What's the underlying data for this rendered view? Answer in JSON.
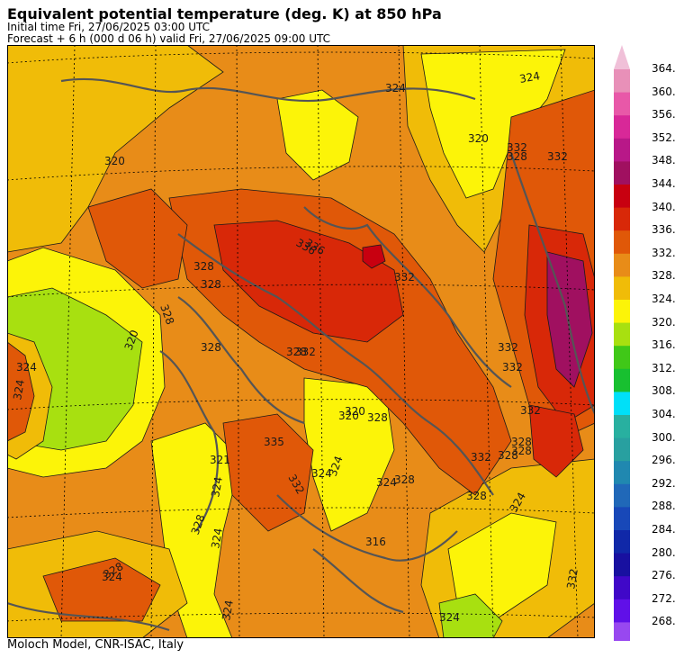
{
  "header": {
    "title": "Equivalent potential temperature (deg. K) at 850 hPa",
    "initial_time": "Initial time  Fri, 27/06/2025  03:00 UTC",
    "forecast": "Forecast  +   6 h  (000 d 06 h)  valid Fri, 27/06/2025 09:00 UTC"
  },
  "footer": {
    "credit": "Moloch Model, CNR-ISAC, Italy"
  },
  "colorbar": {
    "labels": [
      "364.",
      "360.",
      "356.",
      "352.",
      "348.",
      "344.",
      "340.",
      "336.",
      "332.",
      "328.",
      "324.",
      "320.",
      "316.",
      "312.",
      "308.",
      "304.",
      "300.",
      "296.",
      "292.",
      "288.",
      "284.",
      "280.",
      "276.",
      "272.",
      "268."
    ],
    "colors": [
      "#e890b8",
      "#e858a8",
      "#d82898",
      "#b81888",
      "#a01060",
      "#c80010",
      "#d82808",
      "#e05808",
      "#e88c18",
      "#f0bc08",
      "#fcf408",
      "#a8e010",
      "#40c818",
      "#18c030",
      "#00e0f8",
      "#28b0a0",
      "#28a0a0",
      "#2088b0",
      "#2068b8",
      "#1848b8",
      "#1028a8",
      "#1810a0",
      "#4008c8",
      "#6010e8",
      "#9848f0"
    ],
    "top_arrow_color": "#f0c0d8",
    "bottom_arrow_color": "#b880f0"
  },
  "map": {
    "contour_labels": [
      "324",
      "320",
      "332",
      "324",
      "320",
      "328",
      "332",
      "336",
      "328",
      "336",
      "328",
      "332",
      "320",
      "328",
      "324",
      "332",
      "328",
      "332",
      "328",
      "328",
      "320",
      "332",
      "328",
      "332",
      "324",
      "328",
      "320",
      "321",
      "324",
      "335",
      "332",
      "324",
      "324",
      "328",
      "324",
      "328",
      "324",
      "332",
      "324",
      "328",
      "324",
      "324",
      "332",
      "328",
      "328",
      "324",
      "316"
    ]
  }
}
